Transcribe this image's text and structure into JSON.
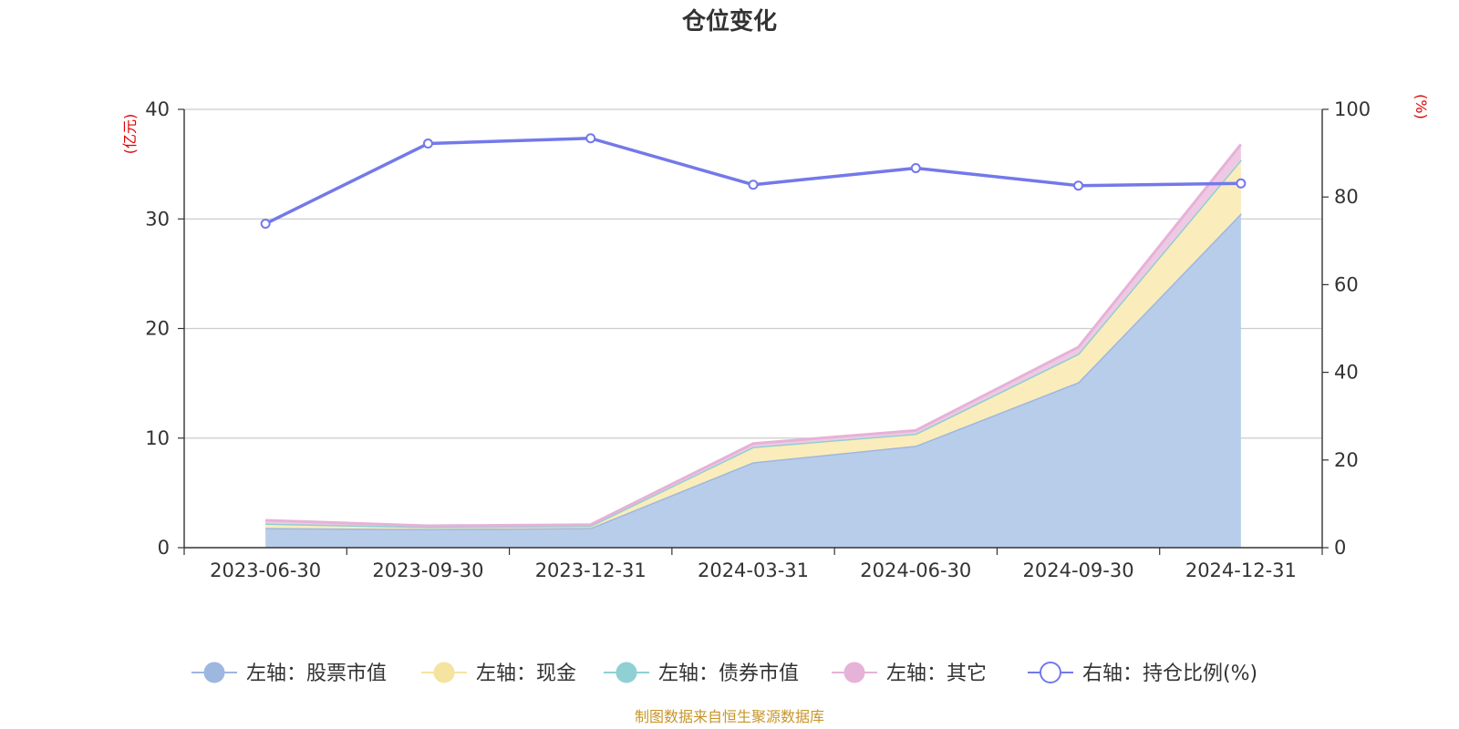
{
  "chart_data": {
    "type": "area",
    "title": "仓位变化",
    "categories": [
      "2023-06-30",
      "2023-09-30",
      "2023-12-31",
      "2024-03-31",
      "2024-06-30",
      "2024-09-30",
      "2024-12-31"
    ],
    "left_axis": {
      "unit": "(亿元)",
      "ylim": [
        0,
        40
      ],
      "ticks": [
        "0",
        "10",
        "20",
        "30",
        "40"
      ]
    },
    "right_axis": {
      "unit": "(%)",
      "ylim": [
        0,
        100
      ],
      "ticks": [
        "0",
        "20",
        "40",
        "60",
        "80",
        "100"
      ]
    },
    "series": [
      {
        "name": "左轴：股票市值",
        "axis": "left",
        "kind": "stacked-area",
        "color": "#9db7df",
        "fill": "#b8cdea",
        "values": [
          1.8,
          1.7,
          1.8,
          7.8,
          9.3,
          15.1,
          30.5
        ]
      },
      {
        "name": "左轴：现金",
        "axis": "left",
        "kind": "stacked-area",
        "color": "#f5e3a0",
        "fill": "#faecbb",
        "values": [
          0.4,
          0.2,
          0.2,
          1.4,
          1.1,
          2.6,
          4.9
        ]
      },
      {
        "name": "左轴：债券市值",
        "axis": "left",
        "kind": "stacked-area",
        "color": "#8fd0d3",
        "fill": "#b7e3e5",
        "values": [
          0,
          0,
          0,
          0,
          0,
          0,
          0
        ]
      },
      {
        "name": "左轴：其它",
        "axis": "left",
        "kind": "stacked-area",
        "color": "#e6b2d7",
        "fill": "#efc9e4",
        "values": [
          0.3,
          0.1,
          0.1,
          0.3,
          0.3,
          0.6,
          1.4
        ]
      },
      {
        "name": "右轴：持仓比例(%)",
        "axis": "right",
        "kind": "line",
        "color": "#7379e9",
        "fill": "#ffffff",
        "values": [
          73.9,
          92.2,
          93.4,
          82.8,
          86.6,
          82.6,
          83.1
        ]
      }
    ],
    "legend_position": "bottom",
    "grid": true
  },
  "source_note": "制图数据来自恒生聚源数据库"
}
